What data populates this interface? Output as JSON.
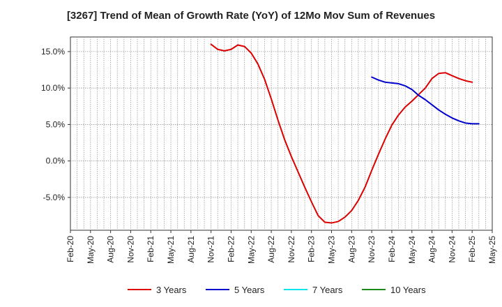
{
  "chart_data": {
    "type": "line",
    "title": "[3267]  Trend of Mean of Growth Rate (YoY) of 12Mo Mov Sum of Revenues",
    "xlabel": "",
    "ylabel": "",
    "ylim": [
      -9.5,
      17.0
    ],
    "x_ticks": [
      "Feb-20",
      "May-20",
      "Aug-20",
      "Nov-20",
      "Feb-21",
      "May-21",
      "Aug-21",
      "Nov-21",
      "Feb-22",
      "May-22",
      "Aug-22",
      "Nov-22",
      "Feb-23",
      "May-23",
      "Aug-23",
      "Nov-23",
      "Feb-24",
      "May-24",
      "Aug-24",
      "Nov-24",
      "Feb-25",
      "May-25"
    ],
    "y_ticks": [
      {
        "value": 15.0,
        "label": "15.0%"
      },
      {
        "value": 10.0,
        "label": "10.0%"
      },
      {
        "value": 5.0,
        "label": "5.0%"
      },
      {
        "value": 0.0,
        "label": "0.0%"
      },
      {
        "value": -5.0,
        "label": "-5.0%"
      }
    ],
    "grid": true,
    "legend_position": "bottom",
    "series": [
      {
        "name": "3 Years",
        "color": "#dd0000",
        "start_index": 21,
        "values": [
          16.0,
          15.3,
          15.1,
          15.3,
          15.9,
          15.7,
          14.8,
          13.3,
          11.2,
          8.5,
          5.6,
          2.9,
          0.6,
          -1.5,
          -3.6,
          -5.6,
          -7.5,
          -8.4,
          -8.5,
          -8.3,
          -7.7,
          -6.8,
          -5.4,
          -3.6,
          -1.3,
          0.9,
          3.0,
          4.9,
          6.3,
          7.4,
          8.2,
          9.1,
          10.0,
          11.3,
          12.0,
          12.1,
          11.7,
          11.3,
          11.0,
          10.8
        ]
      },
      {
        "name": "5 Years",
        "color": "#0000cc",
        "start_index": 45,
        "values": [
          11.5,
          11.1,
          10.8,
          10.7,
          10.6,
          10.3,
          9.8,
          9.0,
          8.4,
          7.7,
          7.0,
          6.4,
          5.9,
          5.5,
          5.2,
          5.1,
          5.1
        ]
      },
      {
        "name": "7 Years",
        "color": "#00e5ee",
        "start_index": 0,
        "values": []
      },
      {
        "name": "10 Years",
        "color": "#1a8a1a",
        "start_index": 0,
        "values": []
      }
    ]
  }
}
